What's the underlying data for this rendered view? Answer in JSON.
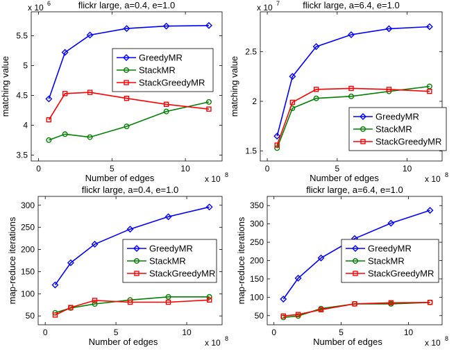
{
  "chart_data": [
    {
      "type": "line",
      "title": "flickr large, a=0.4, e=1.0",
      "xlabel": "Number of edges",
      "ylabel": "matching value",
      "x_multiplier": "x 10",
      "x_exponent": "8",
      "y_multiplier": "x 10",
      "y_exponent": "6",
      "xlim": [
        -0.5,
        12.5
      ],
      "ylim": [
        3.4,
        5.9
      ],
      "xticks": [
        0,
        5,
        10
      ],
      "xtick_labels": [
        "0",
        "5",
        "10"
      ],
      "yticks": [
        3.5,
        4,
        4.5,
        5,
        5.5
      ],
      "ytick_labels": [
        "3.5",
        "4",
        "4.5",
        "5",
        "5.5"
      ],
      "legend": "upper right (inside, mid-height)",
      "grid": false,
      "x": [
        0.7,
        1.8,
        3.5,
        6.0,
        8.7,
        11.6
      ],
      "series": [
        {
          "name": "GreedyMR",
          "color": "#0000ff",
          "marker": "diamond",
          "values": [
            4.44,
            5.22,
            5.51,
            5.62,
            5.66,
            5.67
          ]
        },
        {
          "name": "StackMR",
          "color": "#008000",
          "marker": "circle",
          "values": [
            3.75,
            3.85,
            3.8,
            3.98,
            4.23,
            4.39
          ]
        },
        {
          "name": "StackGreedyMR",
          "color": "#ff0000",
          "marker": "square",
          "values": [
            4.09,
            4.53,
            4.55,
            4.45,
            4.35,
            4.27
          ]
        }
      ]
    },
    {
      "type": "line",
      "title": "flickr large, a=6.4, e=1.0",
      "xlabel": "Number of edges",
      "ylabel": "matching value",
      "x_multiplier": "x 10",
      "x_exponent": "8",
      "y_multiplier": "x 10",
      "y_exponent": "7",
      "xlim": [
        -0.5,
        12.5
      ],
      "ylim": [
        1.4,
        2.9
      ],
      "xticks": [
        0,
        5,
        10
      ],
      "xtick_labels": [
        "0",
        "5",
        "10"
      ],
      "yticks": [
        1.5,
        2,
        2.5
      ],
      "ytick_labels": [
        "1.5",
        "2",
        "2.5"
      ],
      "legend": "lower right",
      "grid": false,
      "x": [
        0.7,
        1.8,
        3.5,
        6.0,
        8.7,
        11.6
      ],
      "series": [
        {
          "name": "GreedyMR",
          "color": "#0000ff",
          "marker": "diamond",
          "values": [
            1.65,
            2.25,
            2.55,
            2.67,
            2.73,
            2.75
          ]
        },
        {
          "name": "StackMR",
          "color": "#008000",
          "marker": "circle",
          "values": [
            1.53,
            1.93,
            2.03,
            2.05,
            2.1,
            2.15
          ]
        },
        {
          "name": "StackGreedyMR",
          "color": "#ff0000",
          "marker": "square",
          "values": [
            1.56,
            1.99,
            2.12,
            2.13,
            2.12,
            2.1
          ]
        }
      ]
    },
    {
      "type": "line",
      "title": "flickr large, a=0.4, e=1.0",
      "xlabel": "Number of edges",
      "ylabel": "map-reduce iterations",
      "x_multiplier": "x 10",
      "x_exponent": "8",
      "xlim": [
        -0.5,
        12.5
      ],
      "ylim": [
        30,
        320
      ],
      "xticks": [
        0,
        5,
        10
      ],
      "xtick_labels": [
        "0",
        "5",
        "10"
      ],
      "yticks": [
        50,
        100,
        150,
        200,
        250,
        300
      ],
      "ytick_labels": [
        "50",
        "100",
        "150",
        "200",
        "250",
        "300"
      ],
      "legend": "right (inside, mid-height)",
      "grid": false,
      "x": [
        0.7,
        1.8,
        3.5,
        6.0,
        8.7,
        11.6
      ],
      "series": [
        {
          "name": "GreedyMR",
          "color": "#0000ff",
          "marker": "diamond",
          "values": [
            120,
            170,
            212,
            246,
            274,
            296
          ]
        },
        {
          "name": "StackMR",
          "color": "#008000",
          "marker": "circle",
          "values": [
            57,
            68,
            77,
            86,
            93,
            93
          ]
        },
        {
          "name": "StackGreedyMR",
          "color": "#ff0000",
          "marker": "square",
          "values": [
            52,
            69,
            85,
            81,
            81,
            86
          ]
        }
      ]
    },
    {
      "type": "line",
      "title": "flickr large, a=6.4, e=1.0",
      "xlabel": "Number of edges",
      "ylabel": "map-reduce iterations",
      "x_multiplier": "x 10",
      "x_exponent": "8",
      "xlim": [
        -0.5,
        12.5
      ],
      "ylim": [
        25,
        375
      ],
      "xticks": [
        0,
        5,
        10
      ],
      "xtick_labels": [
        "0",
        "5",
        "10"
      ],
      "yticks": [
        50,
        100,
        150,
        200,
        250,
        300,
        350
      ],
      "ytick_labels": [
        "50",
        "100",
        "150",
        "200",
        "250",
        "300",
        "350"
      ],
      "legend": "right (inside, mid-height)",
      "grid": false,
      "x": [
        0.7,
        1.8,
        3.5,
        6.0,
        8.7,
        11.6
      ],
      "series": [
        {
          "name": "GreedyMR",
          "color": "#0000ff",
          "marker": "diamond",
          "values": [
            95,
            152,
            207,
            260,
            302,
            337
          ]
        },
        {
          "name": "StackMR",
          "color": "#008000",
          "marker": "circle",
          "values": [
            45,
            49,
            69,
            82,
            82,
            86
          ]
        },
        {
          "name": "StackGreedyMR",
          "color": "#ff0000",
          "marker": "square",
          "values": [
            49,
            53,
            66,
            82,
            85,
            86
          ]
        }
      ]
    }
  ]
}
